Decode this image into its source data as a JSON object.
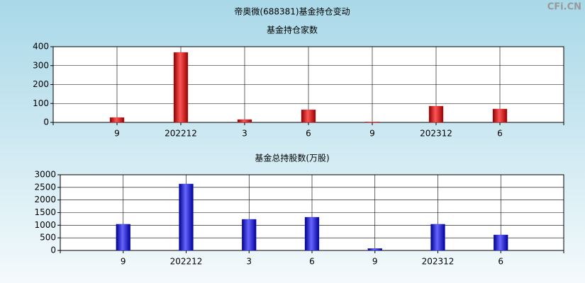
{
  "title": "帝奥微(688381)基金持仓变动",
  "watermark": "CFi.CN",
  "chart_data": [
    {
      "type": "bar",
      "title": "基金持仓家数",
      "categories": [
        "9",
        "202212",
        "3",
        "6",
        "9",
        "202312",
        "6"
      ],
      "values": [
        26,
        370,
        15,
        67,
        3,
        86,
        71
      ],
      "color": "#dd2222",
      "ylim": [
        0,
        400
      ],
      "yticks": [
        0,
        100,
        200,
        300,
        400
      ],
      "grid": true
    },
    {
      "type": "bar",
      "title": "基金总持股数(万股)",
      "categories": [
        "9",
        "202212",
        "3",
        "6",
        "9",
        "202312",
        "6"
      ],
      "values": [
        1040,
        2636,
        1234,
        1318,
        80,
        1040,
        617
      ],
      "color": "#2222dd",
      "ylim": [
        0,
        3000
      ],
      "yticks": [
        0,
        500,
        1000,
        1500,
        2000,
        2500,
        3000
      ],
      "grid": true
    }
  ]
}
